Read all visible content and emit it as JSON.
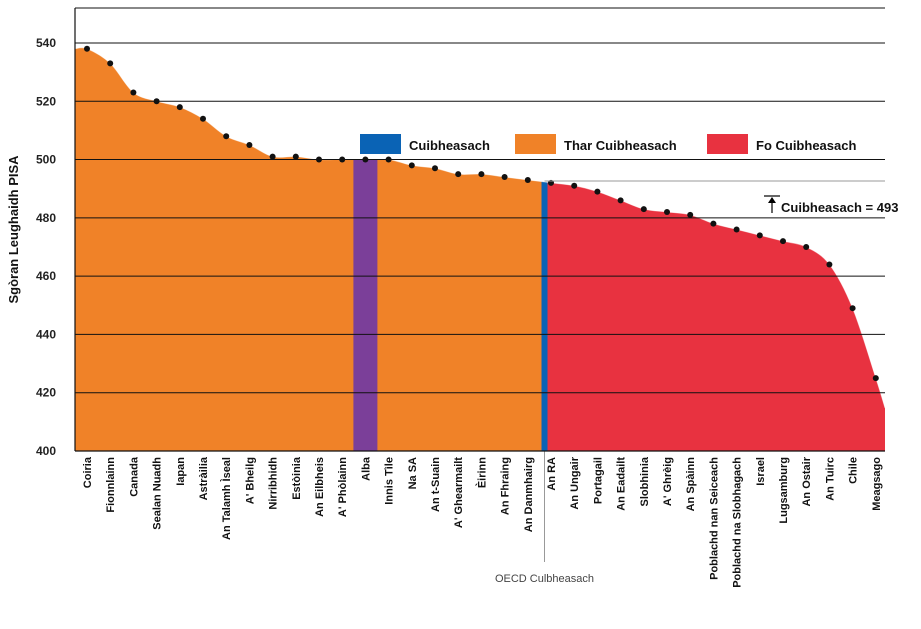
{
  "chart_data": {
    "type": "area",
    "title": "",
    "xlabel": "",
    "ylabel": "Sgòran Leughaidh PISA",
    "ylim": [
      400,
      552
    ],
    "yticks": [
      400,
      420,
      440,
      460,
      480,
      500,
      520,
      540
    ],
    "grid": true,
    "legend_position": "top-right",
    "categories": [
      "Coiria",
      "Fionnlainn",
      "Canada",
      "Sealan Nuadh",
      "Iapan",
      "Astràilia",
      "An Talamh Ìseal",
      "A' Bheilg",
      "Nirribhidh",
      "Estòinia",
      "An Eilbheis",
      "A' Phòlainn",
      "Alba",
      "Innis Tìle",
      "Na SA",
      "An t-Suain",
      "A' Ghearmailt",
      "Èirinn",
      "An Fhraing",
      "An Danmhairg",
      "An RA",
      "An Ungair",
      "Portagail",
      "An Eadailt",
      "Slobhinia",
      "A' Ghrèig",
      "An Spàinn",
      "Poblachd nan Seiceach",
      "Poblachd na Slobhagach",
      "Israel",
      "Lugsamburg",
      "An Ostair",
      "An Tuirc",
      "Chile",
      "Meagsago"
    ],
    "series": [
      {
        "values": [
          538,
          533,
          523,
          520,
          518,
          514,
          508,
          505,
          501,
          501,
          500,
          500,
          500,
          500,
          498,
          497,
          495,
          495,
          494,
          493,
          492,
          491,
          489,
          486,
          483,
          482,
          481,
          478,
          476,
          474,
          472,
          470,
          464,
          449,
          425
        ]
      }
    ],
    "legend": [
      {
        "label": "Cuibheasach",
        "color": "#0a63b5"
      },
      {
        "label": "Thar Cuibheasach",
        "color": "#f08228"
      },
      {
        "label": "Fo Cuibheasach",
        "color": "#e83240"
      }
    ],
    "oecd_average": {
      "value": 493,
      "label": "Cuibheasach = 493"
    },
    "oecd_marker_label": "OECD Culbheasach",
    "highlight": {
      "category": "Alba",
      "color": "#7b3f99"
    },
    "colors": {
      "above": "#f08228",
      "below": "#e83240",
      "average": "#0a63b5",
      "highlight": "#7b3f99",
      "points": "#111111"
    }
  }
}
